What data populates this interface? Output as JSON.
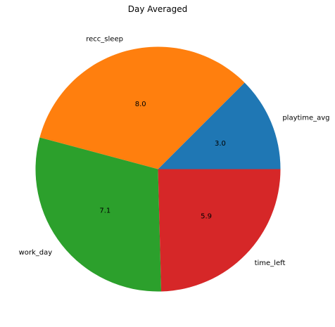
{
  "chart_data": {
    "type": "pie",
    "title": "Day Averaged",
    "categories": [
      "playtime_avg",
      "recc_sleep",
      "work_day",
      "time_left"
    ],
    "values": [
      3.0,
      8.0,
      7.1,
      5.9
    ],
    "value_labels": [
      "3.0",
      "8.0",
      "7.1",
      "5.9"
    ],
    "colors": [
      "#1f77b4",
      "#ff7f0e",
      "#2ca02c",
      "#d62728"
    ],
    "start_angle_deg": 0,
    "direction": "counterclockwise",
    "legend": "none"
  }
}
